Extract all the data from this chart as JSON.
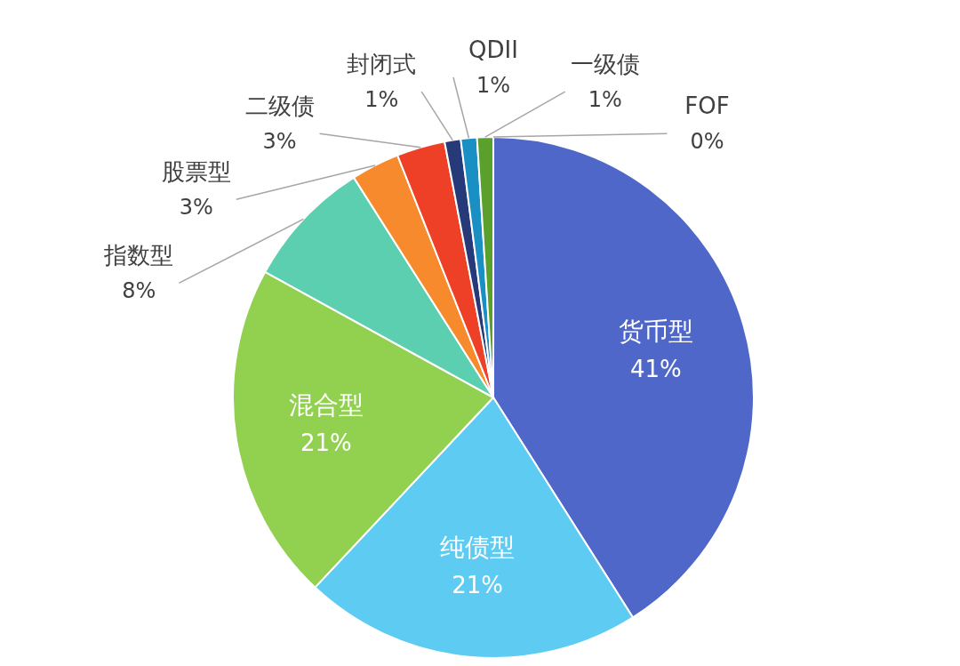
{
  "chart_data": {
    "type": "pie",
    "categories": [
      "货币型",
      "纯债型",
      "混合型",
      "指数型",
      "股票型",
      "二级债",
      "封闭式",
      "QDII",
      "一级债",
      "FOF"
    ],
    "values": [
      41,
      21,
      21,
      8,
      3,
      3,
      1,
      1,
      1,
      0
    ],
    "value_labels": [
      "41%",
      "21%",
      "21%",
      "8%",
      "3%",
      "3%",
      "1%",
      "1%",
      "1%",
      "0%"
    ],
    "colors": [
      "#4f67c8",
      "#5ecbf2",
      "#92d050",
      "#5ccfb0",
      "#f78a2c",
      "#ee4027",
      "#263a7a",
      "#1a8fc4",
      "#5aa02c",
      "#2e7d5a"
    ]
  }
}
